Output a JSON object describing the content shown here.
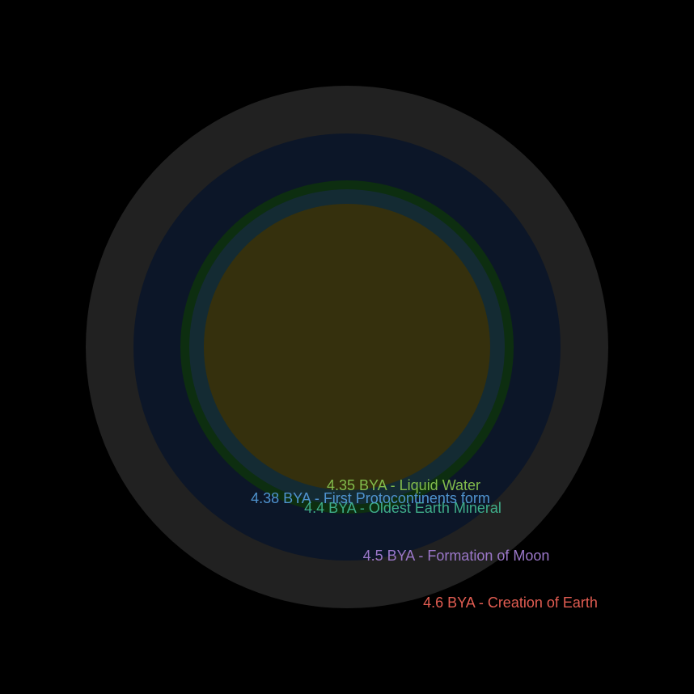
{
  "events": [
    {
      "label": "4.6 BYA - Creation of Earth",
      "color": "#e35d52",
      "fill": "#212121"
    },
    {
      "label": "4.5 BYA - Formation of Moon",
      "color": "#9b77c9",
      "fill": "#0c1628"
    },
    {
      "label": "4.4 BYA - Oldest Earth Mineral",
      "color": "#3fae8a",
      "fill": "#0d2e10"
    },
    {
      "label": "4.38 BYA - First Protocontinents form",
      "color": "#4f93cf",
      "fill": "#142b33"
    },
    {
      "label": "4.35 BYA - Liquid Water",
      "color": "#82bc4c",
      "fill": "#35300d"
    }
  ]
}
